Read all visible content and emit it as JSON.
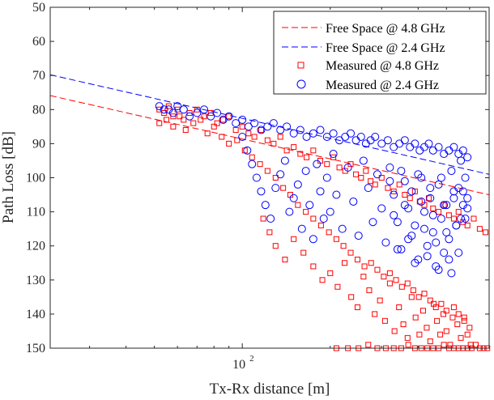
{
  "colors": {
    "series_4_8": "#ff0000",
    "series_2_4": "#0000ff",
    "axis": "#262626",
    "background": "#ffffff"
  },
  "chart_data": {
    "type": "scatter",
    "xscale": "log",
    "yaxis_reversed": true,
    "xlim": [
      22,
      700
    ],
    "ylim": [
      50,
      150
    ],
    "xlabel": "Tx-Rx distance [m]",
    "ylabel": "Path Loss [dB]",
    "yticks": [
      50,
      60,
      70,
      80,
      90,
      100,
      110,
      120,
      130,
      140,
      150
    ],
    "xticks": [
      {
        "value": 100,
        "base": "10",
        "exp": "2"
      }
    ],
    "grid": false,
    "legend_position": "top-right",
    "legend": [
      "Free Space @ 4.8 GHz",
      "Free Space @ 2.4 GHz",
      "Measured @ 4.8 GHz",
      "Measured @ 2.4 GHz"
    ],
    "series": [
      {
        "name": "Free Space @ 4.8 GHz",
        "kind": "line",
        "style": "dashed",
        "color": "#ff0000",
        "x": [
          22,
          700
        ],
        "y": [
          75.9,
          105.0
        ]
      },
      {
        "name": "Free Space @ 2.4 GHz",
        "kind": "line",
        "style": "dashed",
        "color": "#0000ff",
        "x": [
          22,
          700
        ],
        "y": [
          69.8,
          99.0
        ]
      },
      {
        "name": "Measured @ 4.8 GHz",
        "kind": "scatter",
        "marker": "square",
        "color": "#ff0000",
        "x": [
          52,
          54,
          56,
          58,
          60,
          63,
          66,
          70,
          74,
          78,
          82,
          86,
          90,
          95,
          100,
          105,
          110,
          116,
          122,
          128,
          135,
          142,
          150,
          158,
          166,
          175,
          185,
          195,
          205,
          215,
          225,
          235,
          245,
          255,
          265,
          275,
          285,
          300,
          315,
          330,
          345,
          360,
          375,
          390,
          405,
          420,
          435,
          450,
          470,
          490,
          510,
          530,
          550,
          570,
          590,
          620,
          650,
          680,
          52,
          55,
          58,
          61,
          64,
          68,
          72,
          76,
          80,
          85,
          90,
          96,
          102,
          108,
          115,
          122,
          130,
          138,
          146,
          155,
          165,
          175,
          186,
          198,
          210,
          222,
          235,
          248,
          262,
          276,
          290,
          305,
          320,
          336,
          352,
          368,
          385,
          402,
          420,
          440,
          460,
          480,
          500,
          525,
          550,
          575,
          600,
          118,
          124,
          130,
          140,
          150,
          162,
          175,
          188,
          200,
          212,
          224,
          236,
          248,
          260,
          272,
          284,
          296,
          308,
          320,
          332,
          344,
          356,
          368,
          380,
          392,
          404,
          416,
          428,
          440,
          452,
          464,
          476,
          488,
          500,
          515,
          530,
          545,
          560,
          575,
          590,
          605,
          210,
          230,
          250,
          270,
          290,
          310,
          330,
          350,
          370,
          390,
          410,
          430,
          450,
          470,
          490,
          510,
          530,
          550,
          570,
          590,
          610,
          630,
          650,
          670,
          690
        ],
        "y": [
          80,
          81,
          79,
          82,
          80,
          83,
          81,
          80,
          82,
          81,
          84,
          83,
          82,
          86,
          85,
          87,
          88,
          86,
          89,
          90,
          88,
          92,
          91,
          93,
          94,
          92,
          95,
          96,
          94,
          97,
          98,
          96,
          99,
          100,
          98,
          101,
          102,
          100,
          103,
          104,
          102,
          105,
          106,
          104,
          107,
          108,
          106,
          109,
          110,
          108,
          111,
          112,
          110,
          113,
          114,
          112,
          115,
          116,
          84,
          83,
          85,
          82,
          86,
          84,
          83,
          87,
          85,
          88,
          90,
          89,
          92,
          94,
          96,
          98,
          100,
          103,
          105,
          108,
          110,
          112,
          114,
          116,
          118,
          120,
          122,
          124,
          126,
          125,
          127,
          129,
          128,
          130,
          132,
          131,
          133,
          135,
          134,
          136,
          138,
          137,
          139,
          141,
          140,
          142,
          144,
          112,
          116,
          120,
          124,
          118,
          122,
          126,
          130,
          128,
          132,
          125,
          135,
          138,
          129,
          133,
          140,
          136,
          142,
          131,
          145,
          138,
          143,
          147,
          135,
          141,
          146,
          139,
          144,
          148,
          137,
          142,
          146,
          140,
          145,
          149,
          138,
          143,
          147,
          141,
          146,
          149,
          150,
          150,
          150,
          149,
          150,
          150,
          150,
          150,
          149,
          150,
          150,
          150,
          150,
          150,
          149,
          150,
          150,
          150,
          150,
          150,
          150,
          149,
          150,
          150,
          150
        ]
      },
      {
        "name": "Measured @ 2.4 GHz",
        "kind": "scatter",
        "marker": "circle",
        "color": "#0000ff",
        "x": [
          52,
          54,
          56,
          58,
          60,
          63,
          66,
          70,
          74,
          78,
          82,
          86,
          90,
          95,
          100,
          105,
          110,
          116,
          122,
          128,
          135,
          142,
          150,
          158,
          166,
          175,
          185,
          195,
          205,
          215,
          225,
          235,
          245,
          255,
          265,
          275,
          285,
          300,
          315,
          330,
          345,
          360,
          375,
          390,
          405,
          420,
          435,
          450,
          470,
          490,
          510,
          530,
          550,
          570,
          590,
          100,
          104,
          108,
          112,
          116,
          120,
          125,
          130,
          135,
          140,
          145,
          150,
          155,
          160,
          165,
          170,
          175,
          180,
          185,
          190,
          195,
          200,
          205,
          210,
          220,
          230,
          240,
          250,
          260,
          270,
          280,
          290,
          300,
          310,
          320,
          330,
          340,
          350,
          360,
          370,
          380,
          390,
          400,
          410,
          420,
          430,
          440,
          450,
          460,
          470,
          480,
          490,
          500,
          510,
          520,
          530,
          540,
          550,
          560,
          570,
          580,
          590,
          320,
          330,
          340,
          350,
          360,
          370,
          380,
          390,
          400,
          410,
          420,
          430,
          440,
          450,
          460,
          470,
          480,
          490,
          500,
          510,
          520,
          530,
          540,
          550,
          560,
          570,
          580,
          590
        ],
        "y": [
          79,
          80,
          80,
          81,
          79,
          80,
          82,
          81,
          80,
          82,
          81,
          83,
          82,
          84,
          83,
          85,
          84,
          86,
          85,
          84,
          86,
          85,
          87,
          86,
          88,
          87,
          86,
          88,
          87,
          89,
          88,
          87,
          89,
          88,
          90,
          89,
          88,
          90,
          89,
          91,
          90,
          89,
          91,
          90,
          92,
          91,
          90,
          92,
          91,
          93,
          92,
          91,
          93,
          92,
          94,
          88,
          92,
          96,
          100,
          104,
          108,
          112,
          103,
          99,
          95,
          110,
          106,
          102,
          115,
          98,
          108,
          118,
          96,
          104,
          112,
          100,
          110,
          93,
          105,
          115,
          97,
          107,
          117,
          95,
          103,
          113,
          99,
          109,
          119,
          101,
          111,
          121,
          98,
          108,
          118,
          104,
          114,
          124,
          100,
          110,
          120,
          106,
          116,
          126,
          102,
          112,
          122,
          108,
          118,
          128,
          104,
          114,
          103,
          112,
          108,
          100,
          106,
          97,
          105,
          113,
          121,
          101,
          109,
          117,
          125,
          99,
          107,
          115,
          123,
          103,
          111,
          119,
          127,
          100,
          108,
          116,
          124,
          98,
          106,
          114,
          122,
          95,
          104,
          112,
          109
        ]
      }
    ]
  }
}
